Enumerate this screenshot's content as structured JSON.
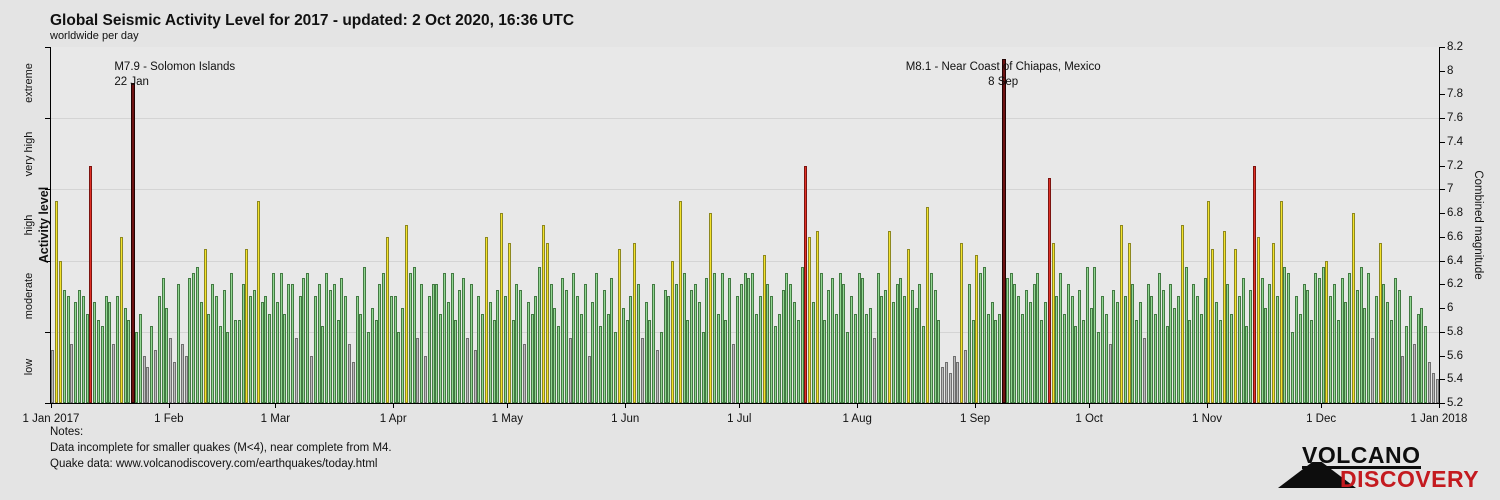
{
  "title": "Global Seismic Activity Level for 2017 - updated:  2 Oct 2020, 16:36 UTC",
  "subtitle": "worldwide per day",
  "left_axis": {
    "label": "Activity level",
    "categories": [
      "extreme",
      "very high",
      "high",
      "moderate",
      "low"
    ]
  },
  "right_axis": {
    "label": "Combined magnitude",
    "min": 5.2,
    "max": 8.2,
    "step": 0.2
  },
  "x_axis": {
    "ticks": [
      {
        "label": "1 Jan 2017",
        "day": 0
      },
      {
        "label": "1 Feb",
        "day": 31
      },
      {
        "label": "1 Mar",
        "day": 59
      },
      {
        "label": "1 Apr",
        "day": 90
      },
      {
        "label": "1 May",
        "day": 120
      },
      {
        "label": "1 Jun",
        "day": 151
      },
      {
        "label": "1 Jul",
        "day": 181
      },
      {
        "label": "1 Aug",
        "day": 212
      },
      {
        "label": "1 Sep",
        "day": 243
      },
      {
        "label": "1 Oct",
        "day": 273
      },
      {
        "label": "1 Nov",
        "day": 304
      },
      {
        "label": "1 Dec",
        "day": 334
      },
      {
        "label": "1 Jan 2018",
        "day": 365
      }
    ]
  },
  "annotations": [
    {
      "line1": "M7.9 - Solomon Islands",
      "line2": "22 Jan",
      "day": 21,
      "align": "left"
    },
    {
      "line1": "M8.1 - Near Coast of Chiapas, Mexico",
      "line2": "8 Sep",
      "day": 250,
      "align": "center"
    }
  ],
  "notes": {
    "heading": "Notes:",
    "line1": "Data incomplete for smaller quakes (M<4), near complete from M4.",
    "line2": "Quake data: www.volcanodiscovery.com/earthquakes/today.html"
  },
  "logo": {
    "line1": "VOLCANO",
    "line2": "DISCOVERY",
    "accent_color": "#c41a1f"
  },
  "chart_data": {
    "type": "bar",
    "title": "Global Seismic Activity Level for 2017",
    "xlabel": "",
    "ylabel": "Combined magnitude",
    "ylim": [
      5.2,
      8.2
    ],
    "x_start": "1 Jan 2017",
    "x_end": "1 Jan 2018",
    "grid": "horizontal at level boundaries",
    "legend_position": "none",
    "level_bands": [
      {
        "name": "low",
        "range": [
          5.2,
          5.8
        ],
        "fill": "#bcbcbc",
        "edge": "#707070"
      },
      {
        "name": "moderate",
        "range": [
          5.8,
          6.4
        ],
        "fill": "#92d792",
        "edge": "#437a43"
      },
      {
        "name": "high",
        "range": [
          6.4,
          7.0
        ],
        "fill": "#f4e32c",
        "edge": "#8d8820"
      },
      {
        "name": "very high",
        "range": [
          7.0,
          7.6
        ],
        "fill": "#e03026",
        "edge": "#7c1410"
      },
      {
        "name": "extreme",
        "range": [
          7.6,
          8.2
        ],
        "fill": "#6e1212",
        "edge": "#230404"
      }
    ],
    "notable_events": [
      {
        "date": "22 Jan",
        "magnitude": 7.9,
        "location": "Solomon Islands"
      },
      {
        "date": "8 Sep",
        "magnitude": 8.1,
        "location": "Near Coast of Chiapas, Mexico"
      }
    ],
    "magnitudes": [
      5.65,
      6.9,
      6.4,
      6.15,
      6.1,
      5.7,
      6.05,
      6.15,
      6.1,
      5.95,
      7.2,
      6.05,
      5.9,
      5.85,
      6.1,
      6.05,
      5.7,
      6.1,
      6.6,
      6.0,
      5.9,
      7.9,
      5.8,
      5.95,
      5.6,
      5.5,
      5.85,
      5.65,
      6.1,
      6.25,
      6.0,
      5.75,
      5.55,
      6.2,
      5.7,
      5.6,
      6.25,
      6.3,
      6.35,
      6.05,
      6.5,
      5.95,
      6.2,
      6.1,
      5.85,
      6.15,
      5.8,
      6.3,
      5.9,
      5.9,
      6.2,
      6.5,
      6.1,
      6.15,
      6.9,
      6.05,
      6.1,
      5.95,
      6.3,
      6.05,
      6.3,
      5.95,
      6.2,
      6.2,
      5.75,
      6.1,
      6.25,
      6.3,
      5.6,
      6.1,
      6.2,
      5.85,
      6.3,
      6.15,
      6.2,
      5.9,
      6.25,
      6.1,
      5.7,
      5.55,
      6.1,
      5.95,
      6.35,
      5.8,
      6.0,
      5.9,
      6.2,
      6.3,
      6.6,
      6.1,
      6.1,
      5.8,
      6.0,
      6.7,
      6.3,
      6.35,
      5.75,
      6.2,
      5.6,
      6.1,
      6.2,
      6.2,
      5.95,
      6.3,
      6.05,
      6.3,
      5.9,
      6.15,
      6.25,
      5.75,
      6.2,
      5.65,
      6.1,
      5.95,
      6.6,
      6.05,
      5.9,
      6.15,
      6.8,
      6.1,
      6.55,
      5.9,
      6.2,
      6.15,
      5.7,
      6.05,
      5.95,
      6.1,
      6.35,
      6.7,
      6.55,
      6.2,
      6.0,
      5.85,
      6.25,
      6.15,
      5.75,
      6.3,
      6.1,
      5.95,
      6.2,
      5.6,
      6.05,
      6.3,
      5.85,
      6.15,
      5.95,
      6.25,
      5.8,
      6.5,
      6.0,
      5.9,
      6.1,
      6.55,
      6.2,
      5.75,
      6.05,
      5.9,
      6.2,
      5.65,
      5.8,
      6.15,
      6.1,
      6.4,
      6.2,
      6.9,
      6.3,
      5.9,
      6.15,
      6.2,
      6.05,
      5.8,
      6.25,
      6.8,
      6.3,
      5.95,
      6.3,
      5.9,
      6.25,
      5.7,
      6.1,
      6.2,
      6.3,
      6.25,
      6.3,
      5.95,
      6.1,
      6.45,
      6.2,
      6.1,
      5.85,
      5.95,
      6.15,
      6.3,
      6.2,
      6.05,
      5.9,
      6.35,
      7.2,
      6.6,
      6.05,
      6.65,
      6.3,
      5.9,
      6.15,
      6.25,
      5.95,
      6.3,
      6.2,
      5.8,
      6.1,
      5.95,
      6.3,
      6.25,
      5.95,
      6.0,
      5.75,
      6.3,
      6.1,
      6.15,
      6.65,
      6.05,
      6.2,
      6.25,
      6.1,
      6.5,
      6.15,
      6.0,
      6.2,
      5.85,
      6.85,
      6.3,
      6.15,
      5.9,
      5.5,
      5.55,
      5.45,
      5.6,
      5.55,
      6.55,
      5.65,
      6.2,
      5.9,
      6.45,
      6.3,
      6.35,
      5.95,
      6.05,
      5.9,
      5.95,
      8.1,
      6.25,
      6.3,
      6.2,
      6.1,
      5.95,
      6.15,
      6.05,
      6.2,
      6.3,
      5.9,
      6.05,
      7.1,
      6.55,
      6.1,
      6.3,
      5.95,
      6.2,
      6.1,
      5.85,
      6.15,
      5.9,
      6.35,
      6.0,
      6.35,
      5.8,
      6.1,
      5.95,
      5.7,
      6.15,
      6.05,
      6.7,
      6.1,
      6.55,
      6.2,
      5.9,
      6.05,
      5.75,
      6.2,
      6.1,
      5.95,
      6.3,
      6.15,
      5.85,
      6.2,
      6.0,
      6.1,
      6.7,
      6.35,
      5.9,
      6.2,
      6.1,
      5.95,
      6.25,
      6.9,
      6.5,
      6.05,
      5.9,
      6.65,
      6.2,
      5.95,
      6.5,
      6.1,
      6.25,
      5.85,
      6.15,
      7.2,
      6.6,
      6.25,
      6.0,
      6.2,
      6.55,
      6.1,
      6.9,
      6.35,
      6.3,
      5.8,
      6.1,
      5.95,
      6.2,
      6.15,
      5.9,
      6.3,
      6.25,
      6.35,
      6.4,
      6.1,
      6.2,
      5.9,
      6.25,
      6.05,
      6.3,
      6.8,
      6.15,
      6.35,
      6.0,
      6.3,
      5.75,
      6.1,
      6.55,
      6.2,
      6.05,
      5.9,
      6.25,
      6.15,
      5.6,
      5.85,
      6.1,
      5.7,
      5.95,
      6.0,
      5.85,
      5.55,
      5.45,
      5.4
    ]
  }
}
